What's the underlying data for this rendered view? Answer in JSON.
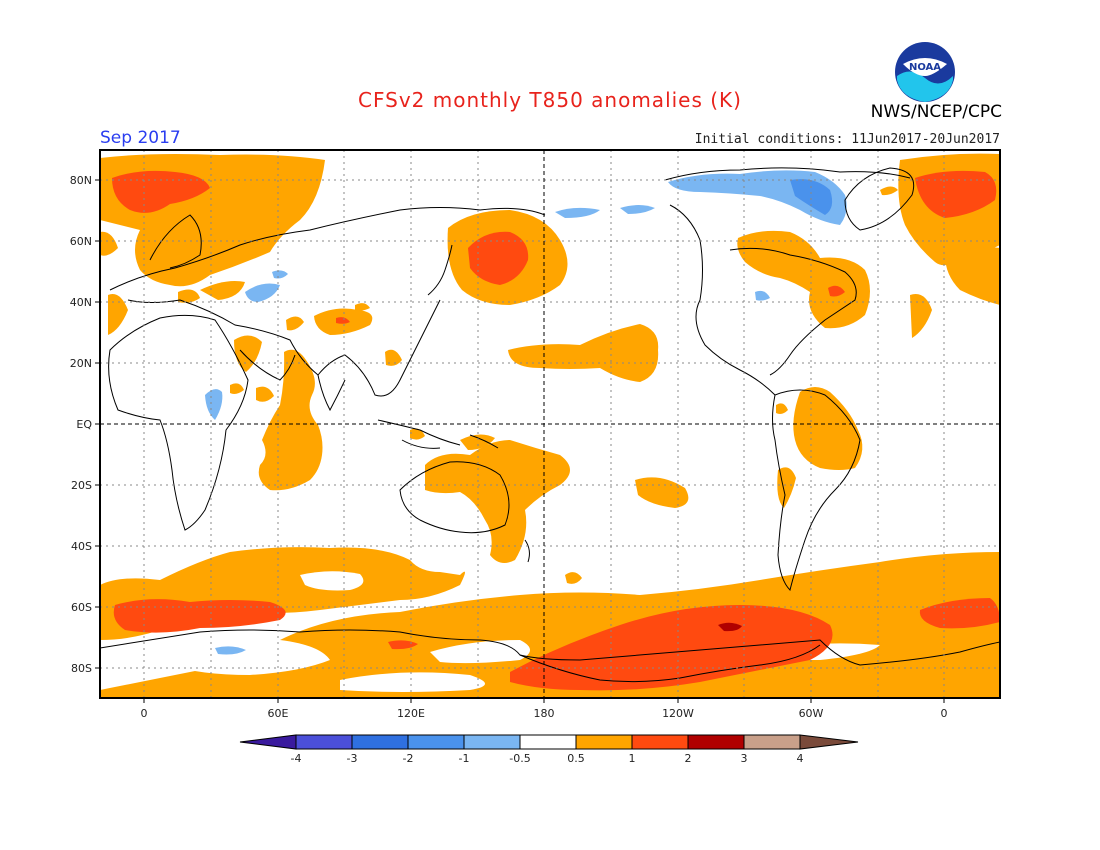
{
  "header": {
    "title": "CFSv2 monthly T850 anomalies (K)",
    "period": "Sep 2017",
    "initial_conditions": "Initial conditions: 11Jun2017-20Jun2017",
    "agency": "NWS/NCEP/CPC",
    "logo_text": "NOAA"
  },
  "map": {
    "lat_labels": [
      "80N",
      "60N",
      "40N",
      "20N",
      "EQ",
      "20S",
      "40S",
      "60S",
      "80S"
    ],
    "lon_labels": [
      "0",
      "60E",
      "120E",
      "180",
      "120W",
      "60W",
      "0"
    ]
  },
  "colorbar": {
    "tick_labels": [
      "-4",
      "-3",
      "-2",
      "-1",
      "-0.5",
      "0.5",
      "1",
      "2",
      "3",
      "4"
    ],
    "colors": [
      "#3a1a9e",
      "#4b4fd9",
      "#2f70e0",
      "#4a92ec",
      "#7ab6f2",
      "#ffffff",
      "#ffa500",
      "#ff4a10",
      "#b00000",
      "#c9a08a",
      "#7a4a3a"
    ]
  },
  "colors": {
    "warm_1": "#ffa500",
    "warm_2": "#ff4a10",
    "warm_3": "#b00000",
    "cool_1": "#7ab6f2",
    "cool_2": "#4a92ec",
    "title": "#e8231c",
    "period": "#2a3df0"
  }
}
